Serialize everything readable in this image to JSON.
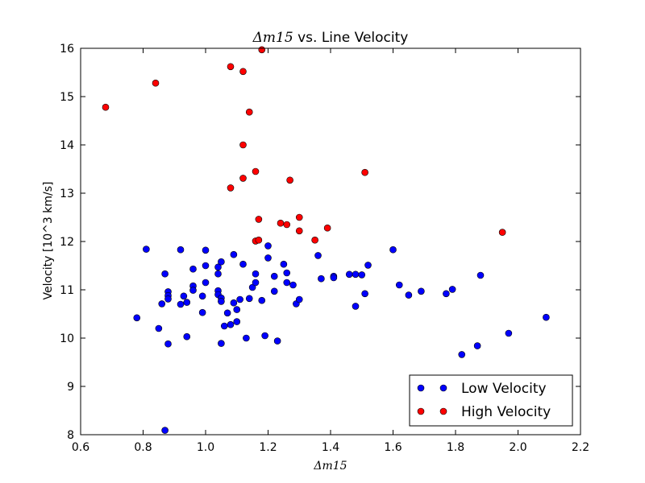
{
  "chart_data": {
    "type": "scatter",
    "title": "Δm15 vs. Line Velocity",
    "title_math": "Δm15",
    "title_rest": " vs. Line Velocity",
    "xlabel": "Δm15",
    "ylabel": "Velocity [10^3 km/s]",
    "xlim": [
      0.6,
      2.2
    ],
    "ylim": [
      8,
      16
    ],
    "xticks": [
      "0.6",
      "0.8",
      "1.0",
      "1.2",
      "1.4",
      "1.6",
      "1.8",
      "2.0",
      "2.2"
    ],
    "yticks": [
      "8",
      "9",
      "10",
      "11",
      "12",
      "13",
      "14",
      "15",
      "16"
    ],
    "legend_position": "lower-right",
    "grid": false,
    "series": [
      {
        "name": "Low Velocity",
        "color": "#0000ff",
        "points": [
          [
            0.78,
            10.42
          ],
          [
            0.81,
            11.84
          ],
          [
            0.85,
            10.2
          ],
          [
            0.86,
            10.71
          ],
          [
            0.87,
            11.33
          ],
          [
            0.88,
            10.96
          ],
          [
            0.88,
            10.88
          ],
          [
            0.88,
            10.81
          ],
          [
            0.88,
            9.88
          ],
          [
            0.87,
            8.09
          ],
          [
            0.92,
            11.83
          ],
          [
            0.92,
            10.7
          ],
          [
            0.93,
            10.87
          ],
          [
            0.94,
            10.74
          ],
          [
            0.94,
            10.03
          ],
          [
            0.96,
            11.43
          ],
          [
            0.96,
            11.08
          ],
          [
            0.96,
            10.99
          ],
          [
            0.99,
            10.53
          ],
          [
            0.99,
            10.87
          ],
          [
            1.0,
            11.82
          ],
          [
            1.0,
            11.5
          ],
          [
            1.0,
            11.15
          ],
          [
            1.04,
            11.47
          ],
          [
            1.04,
            10.98
          ],
          [
            1.04,
            10.9
          ],
          [
            1.05,
            11.58
          ],
          [
            1.04,
            11.33
          ],
          [
            1.05,
            10.83
          ],
          [
            1.05,
            10.76
          ],
          [
            1.05,
            9.89
          ],
          [
            1.06,
            10.25
          ],
          [
            1.07,
            10.52
          ],
          [
            1.08,
            10.28
          ],
          [
            1.09,
            11.73
          ],
          [
            1.09,
            10.73
          ],
          [
            1.1,
            10.59
          ],
          [
            1.1,
            10.34
          ],
          [
            1.11,
            10.8
          ],
          [
            1.12,
            11.53
          ],
          [
            1.13,
            10.0
          ],
          [
            1.14,
            10.82
          ],
          [
            1.15,
            11.05
          ],
          [
            1.16,
            11.33
          ],
          [
            1.16,
            11.15
          ],
          [
            1.18,
            10.78
          ],
          [
            1.19,
            10.05
          ],
          [
            1.2,
            11.91
          ],
          [
            1.2,
            11.66
          ],
          [
            1.22,
            11.28
          ],
          [
            1.22,
            10.97
          ],
          [
            1.23,
            9.94
          ],
          [
            1.25,
            11.53
          ],
          [
            1.26,
            11.35
          ],
          [
            1.26,
            11.15
          ],
          [
            1.28,
            11.1
          ],
          [
            1.29,
            10.71
          ],
          [
            1.3,
            10.8
          ],
          [
            1.36,
            11.71
          ],
          [
            1.37,
            11.23
          ],
          [
            1.41,
            11.28
          ],
          [
            1.41,
            11.25
          ],
          [
            1.46,
            11.32
          ],
          [
            1.48,
            11.32
          ],
          [
            1.48,
            10.66
          ],
          [
            1.5,
            11.31
          ],
          [
            1.51,
            10.92
          ],
          [
            1.52,
            11.51
          ],
          [
            1.6,
            11.83
          ],
          [
            1.62,
            11.1
          ],
          [
            1.65,
            10.89
          ],
          [
            1.69,
            10.97
          ],
          [
            1.77,
            10.92
          ],
          [
            1.79,
            11.01
          ],
          [
            1.82,
            9.66
          ],
          [
            1.87,
            9.84
          ],
          [
            1.88,
            11.3
          ],
          [
            1.97,
            10.1
          ],
          [
            2.09,
            10.43
          ]
        ]
      },
      {
        "name": "High Velocity",
        "color": "#ff0000",
        "points": [
          [
            0.68,
            14.78
          ],
          [
            0.84,
            15.28
          ],
          [
            1.08,
            15.62
          ],
          [
            1.08,
            13.11
          ],
          [
            1.12,
            15.52
          ],
          [
            1.12,
            14.0
          ],
          [
            1.12,
            13.31
          ],
          [
            1.14,
            14.68
          ],
          [
            1.16,
            13.45
          ],
          [
            1.16,
            12.01
          ],
          [
            1.17,
            12.46
          ],
          [
            1.17,
            12.03
          ],
          [
            1.18,
            15.97
          ],
          [
            1.24,
            12.38
          ],
          [
            1.26,
            12.35
          ],
          [
            1.27,
            13.27
          ],
          [
            1.3,
            12.5
          ],
          [
            1.3,
            12.22
          ],
          [
            1.35,
            12.03
          ],
          [
            1.39,
            12.28
          ],
          [
            1.51,
            13.43
          ],
          [
            1.95,
            12.19
          ]
        ]
      }
    ]
  }
}
